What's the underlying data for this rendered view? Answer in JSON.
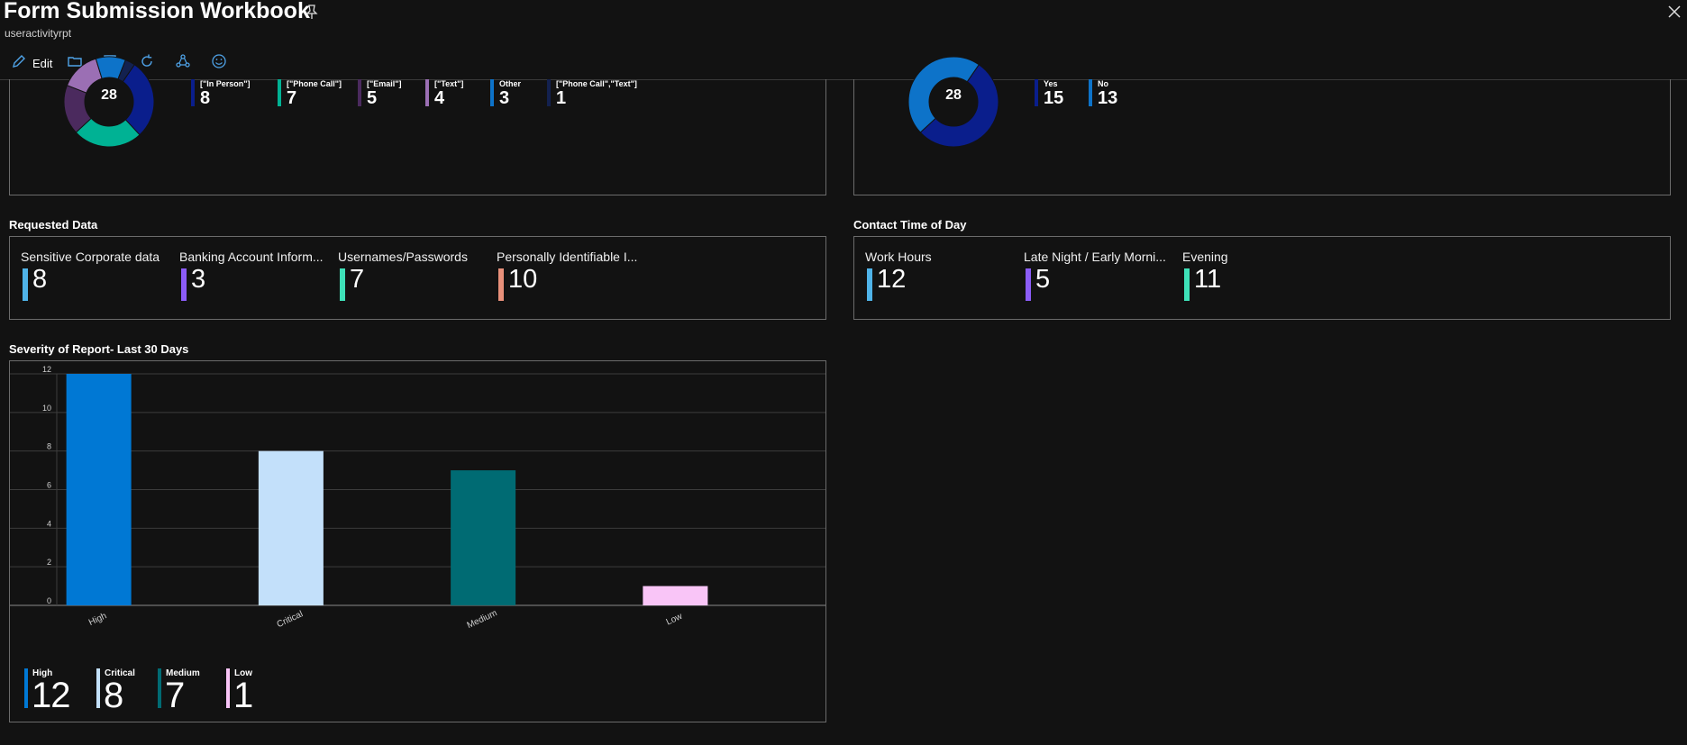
{
  "header": {
    "title": "Form Submission Workbook",
    "subtitle": "useractivityrpt"
  },
  "toolbar": {
    "edit_label": "Edit",
    "icons": [
      "edit-icon",
      "folder-icon",
      "save-icon",
      "refresh-icon",
      "share-icon",
      "smiley-icon"
    ]
  },
  "contact_method": {
    "total": "28",
    "items": [
      {
        "label": "[\"In Person\"]",
        "value": "8",
        "color": "#0a1e8c"
      },
      {
        "label": "[\"Phone Call\"]",
        "value": "7",
        "color": "#00b294"
      },
      {
        "label": "[\"Email\"]",
        "value": "5",
        "color": "#4b2a5e"
      },
      {
        "label": "[\"Text\"]",
        "value": "4",
        "color": "#9b6fb4"
      },
      {
        "label": "Other",
        "value": "3",
        "color": "#0d73c9"
      },
      {
        "label": "[\"Phone Call\",\"Text\"]",
        "value": "1",
        "color": "#13214f"
      }
    ]
  },
  "yes_no": {
    "total": "28",
    "items": [
      {
        "label": "Yes",
        "value": "15",
        "color": "#0a1e8c"
      },
      {
        "label": "No",
        "value": "13",
        "color": "#0d73c9"
      }
    ]
  },
  "requested_data": {
    "title": "Requested Data",
    "tiles": [
      {
        "label": "Sensitive Corporate data",
        "value": "8",
        "color": "#4fb3e8"
      },
      {
        "label": "Banking Account Inform...",
        "value": "3",
        "color": "#8b5cf6"
      },
      {
        "label": "Usernames/Passwords",
        "value": "7",
        "color": "#3ee0b8"
      },
      {
        "label": "Personally Identifiable I...",
        "value": "10",
        "color": "#e8907a"
      }
    ]
  },
  "contact_time": {
    "title": "Contact Time of Day",
    "tiles": [
      {
        "label": "Work Hours",
        "value": "12",
        "color": "#4fb3e8"
      },
      {
        "label": "Late Night / Early Morni...",
        "value": "5",
        "color": "#8b5cf6"
      },
      {
        "label": "Evening",
        "value": "11",
        "color": "#3ee0b8"
      }
    ]
  },
  "severity": {
    "title": "Severity of Report- Last 30 Days",
    "legend": [
      {
        "label": "High",
        "value": "12",
        "color": "#0078d4"
      },
      {
        "label": "Critical",
        "value": "8",
        "color": "#c3e0fa"
      },
      {
        "label": "Medium",
        "value": "7",
        "color": "#006b73"
      },
      {
        "label": "Low",
        "value": "1",
        "color": "#f9c5f7"
      }
    ]
  },
  "chart_data": [
    {
      "type": "pie",
      "categories": [
        "[\"In Person\"]",
        "[\"Phone Call\"]",
        "[\"Email\"]",
        "[\"Text\"]",
        "Other",
        "[\"Phone Call\",\"Text\"]"
      ],
      "values": [
        8,
        7,
        5,
        4,
        3,
        1
      ],
      "center_label": "28",
      "colors": [
        "#0a1e8c",
        "#00b294",
        "#4b2a5e",
        "#9b6fb4",
        "#0d73c9",
        "#13214f"
      ]
    },
    {
      "type": "pie",
      "categories": [
        "Yes",
        "No"
      ],
      "values": [
        15,
        13
      ],
      "center_label": "28",
      "colors": [
        "#0a1e8c",
        "#0d73c9"
      ]
    },
    {
      "type": "bar",
      "title": "Severity of Report- Last 30 Days",
      "categories": [
        "High",
        "Critical",
        "Medium",
        "Low"
      ],
      "values": [
        12,
        8,
        7,
        1
      ],
      "colors": [
        "#0078d4",
        "#c3e0fa",
        "#006b73",
        "#f9c5f7"
      ],
      "ylim": [
        0,
        12
      ],
      "yticks": [
        0,
        2,
        4,
        6,
        8,
        10,
        12
      ],
      "grid": true
    }
  ]
}
